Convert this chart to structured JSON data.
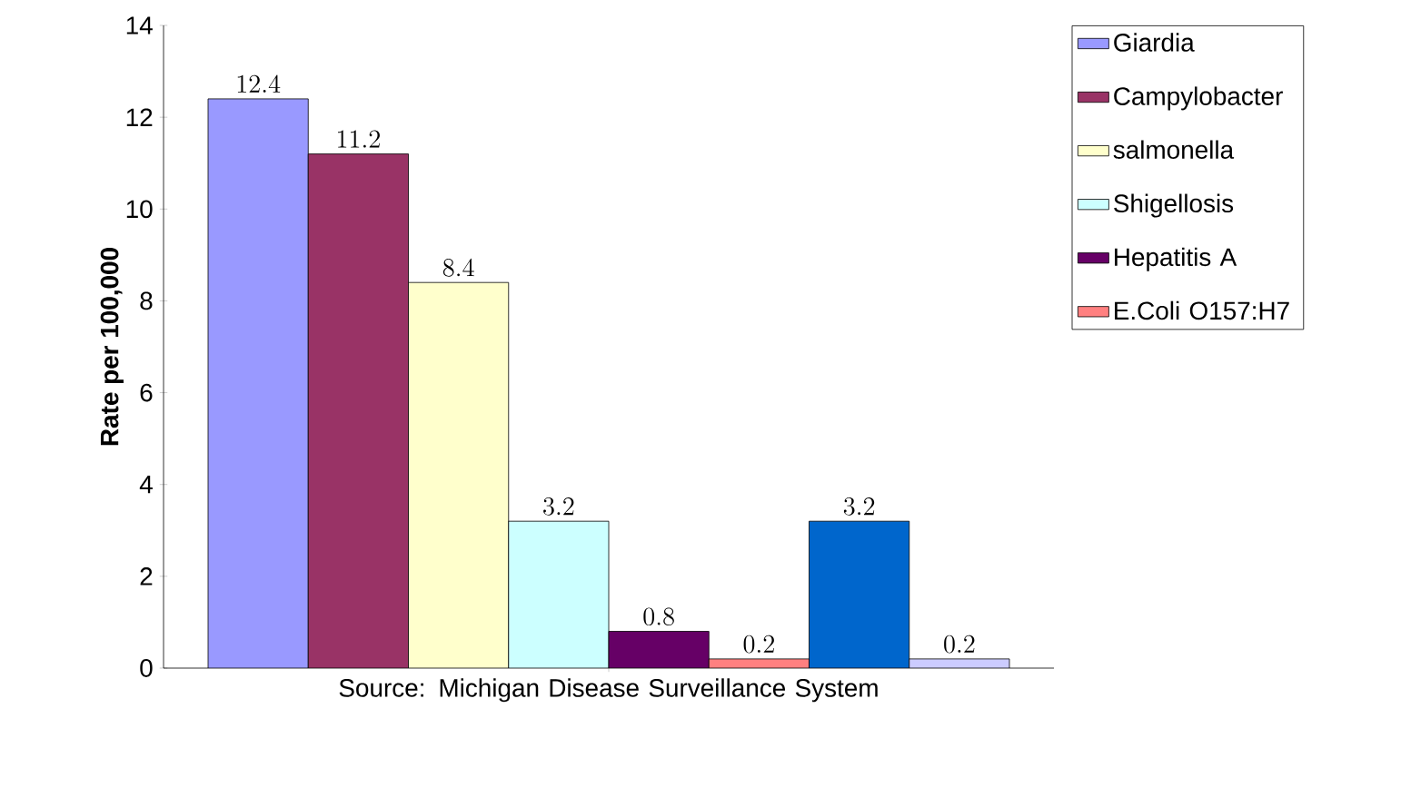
{
  "chart_data": {
    "type": "bar",
    "ylabel": "Rate per 100,000",
    "categories": [
      "Source: Michigan Disease Surveillance System"
    ],
    "series": [
      {
        "name": "Giardia",
        "color": "#9999ff",
        "values": [
          12.4
        ]
      },
      {
        "name": "Campylobacter",
        "color": "#993366",
        "values": [
          11.2
        ]
      },
      {
        "name": "salmonella",
        "color": "#ffffcc",
        "values": [
          8.4
        ]
      },
      {
        "name": "Shigellosis",
        "color": "#ccffff",
        "values": [
          3.2
        ]
      },
      {
        "name": "Hepatitis A",
        "color": "#660066",
        "values": [
          0.8
        ]
      },
      {
        "name": "E.Coli O157:H7",
        "color": "#ff8080",
        "values": [
          0.2
        ]
      },
      {
        "color": "#0066cc",
        "values": [
          3.2
        ]
      },
      {
        "color": "#ccccff",
        "values": [
          0.2
        ]
      }
    ],
    "ylim": [
      0,
      14
    ],
    "yticks": [
      0,
      2,
      4,
      6,
      8,
      10,
      12,
      14
    ],
    "data_labels": true,
    "legend": "top right",
    "grid": false
  }
}
